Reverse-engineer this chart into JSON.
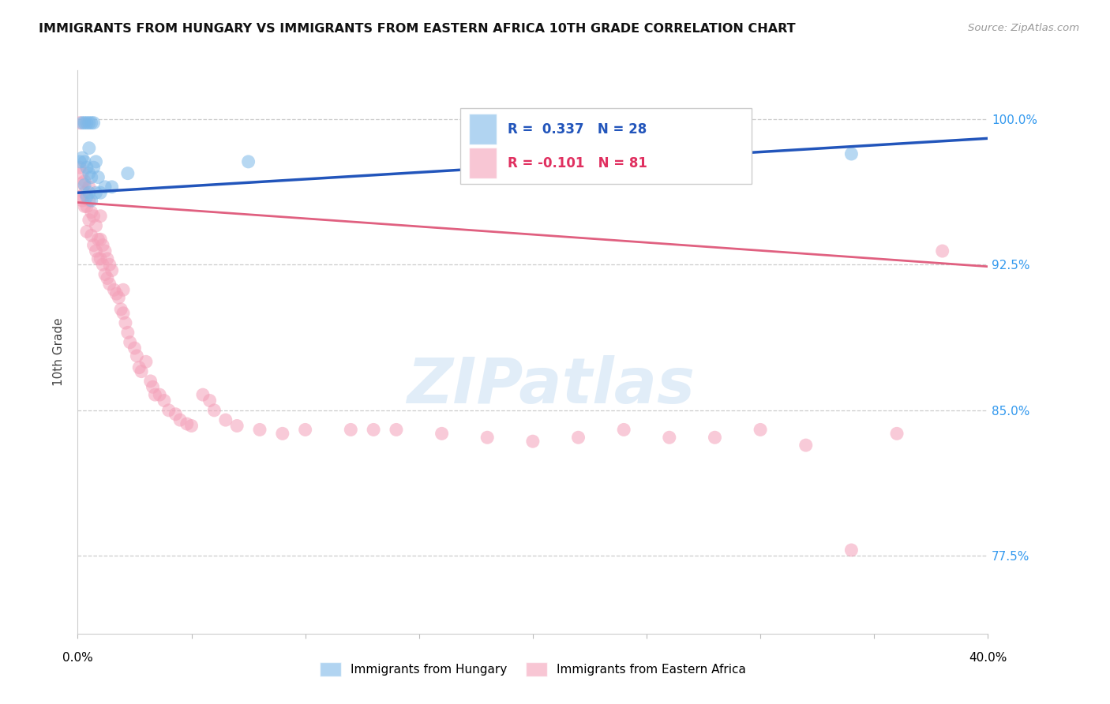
{
  "title": "IMMIGRANTS FROM HUNGARY VS IMMIGRANTS FROM EASTERN AFRICA 10TH GRADE CORRELATION CHART",
  "source": "Source: ZipAtlas.com",
  "ylabel": "10th Grade",
  "ytick_labels": [
    "100.0%",
    "92.5%",
    "85.0%",
    "77.5%"
  ],
  "ytick_values": [
    1.0,
    0.925,
    0.85,
    0.775
  ],
  "xlim": [
    0.0,
    0.4
  ],
  "ylim": [
    0.735,
    1.025
  ],
  "legend_hungary": "R =  0.337   N = 28",
  "legend_eastafrica": "R = -0.101   N = 81",
  "legend_label_hungary": "Immigrants from Hungary",
  "legend_label_eastafrica": "Immigrants from Eastern Africa",
  "blue_color": "#7DB8E8",
  "pink_color": "#F4A0B8",
  "blue_line_color": "#2255BB",
  "pink_line_color": "#E06080",
  "watermark_text": "ZIPatlas",
  "hungary_line": [
    0.0,
    0.962,
    0.4,
    0.99
  ],
  "eastafrica_line": [
    0.0,
    0.957,
    0.4,
    0.924
  ],
  "hungary_x": [
    0.001,
    0.002,
    0.002,
    0.003,
    0.003,
    0.003,
    0.004,
    0.004,
    0.004,
    0.005,
    0.005,
    0.005,
    0.005,
    0.006,
    0.006,
    0.006,
    0.007,
    0.007,
    0.008,
    0.008,
    0.009,
    0.01,
    0.012,
    0.015,
    0.022,
    0.075,
    0.175,
    0.34
  ],
  "hungary_y": [
    0.978,
    0.98,
    0.998,
    0.966,
    0.978,
    0.998,
    0.96,
    0.975,
    0.998,
    0.962,
    0.972,
    0.985,
    0.998,
    0.958,
    0.97,
    0.998,
    0.975,
    0.998,
    0.962,
    0.978,
    0.97,
    0.962,
    0.965,
    0.965,
    0.972,
    0.978,
    0.985,
    0.982
  ],
  "eastafrica_x": [
    0.001,
    0.001,
    0.002,
    0.002,
    0.002,
    0.003,
    0.003,
    0.003,
    0.004,
    0.004,
    0.005,
    0.005,
    0.005,
    0.006,
    0.006,
    0.007,
    0.007,
    0.008,
    0.008,
    0.009,
    0.009,
    0.01,
    0.01,
    0.01,
    0.011,
    0.011,
    0.012,
    0.012,
    0.013,
    0.013,
    0.014,
    0.014,
    0.015,
    0.016,
    0.017,
    0.018,
    0.019,
    0.02,
    0.02,
    0.021,
    0.022,
    0.023,
    0.025,
    0.026,
    0.027,
    0.028,
    0.03,
    0.032,
    0.033,
    0.034,
    0.036,
    0.04,
    0.043,
    0.045,
    0.05,
    0.055,
    0.06,
    0.065,
    0.07,
    0.08,
    0.09,
    0.1,
    0.12,
    0.13,
    0.14,
    0.16,
    0.18,
    0.2,
    0.22,
    0.24,
    0.26,
    0.28,
    0.3,
    0.32,
    0.34,
    0.36,
    0.38,
    0.001,
    0.038,
    0.048,
    0.058
  ],
  "eastafrica_y": [
    0.975,
    0.96,
    0.958,
    0.967,
    0.972,
    0.955,
    0.962,
    0.968,
    0.942,
    0.955,
    0.948,
    0.958,
    0.965,
    0.94,
    0.952,
    0.935,
    0.95,
    0.932,
    0.945,
    0.928,
    0.938,
    0.928,
    0.938,
    0.95,
    0.925,
    0.935,
    0.92,
    0.932,
    0.918,
    0.928,
    0.915,
    0.925,
    0.922,
    0.912,
    0.91,
    0.908,
    0.902,
    0.9,
    0.912,
    0.895,
    0.89,
    0.885,
    0.882,
    0.878,
    0.872,
    0.87,
    0.875,
    0.865,
    0.862,
    0.858,
    0.858,
    0.85,
    0.848,
    0.845,
    0.842,
    0.858,
    0.85,
    0.845,
    0.842,
    0.84,
    0.838,
    0.84,
    0.84,
    0.84,
    0.84,
    0.838,
    0.836,
    0.834,
    0.836,
    0.84,
    0.836,
    0.836,
    0.84,
    0.832,
    0.778,
    0.838,
    0.932,
    0.998,
    0.855,
    0.843,
    0.855
  ]
}
